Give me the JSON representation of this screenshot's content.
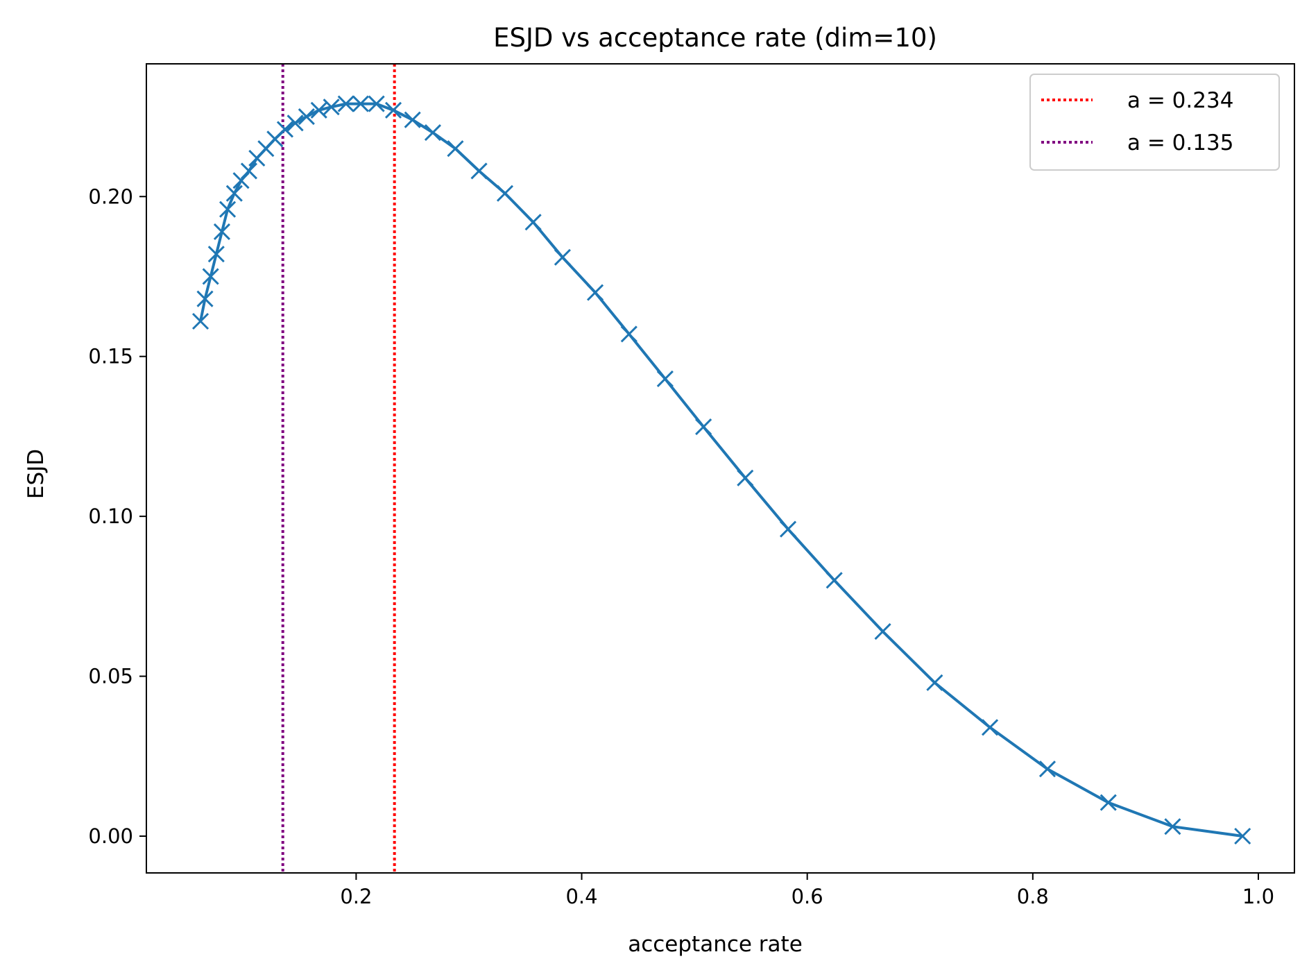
{
  "chart_data": {
    "type": "line",
    "title": "ESJD vs acceptance rate (dim=10)",
    "xlabel": "acceptance rate",
    "ylabel": "ESJD",
    "xlim": [
      0.014,
      1.032
    ],
    "ylim": [
      -0.0115,
      0.2415
    ],
    "xticks": [
      0.2,
      0.4,
      0.6,
      0.8,
      1.0
    ],
    "xtick_labels": [
      "0.2",
      "0.4",
      "0.6",
      "0.8",
      "1.0"
    ],
    "yticks": [
      0.0,
      0.05,
      0.1,
      0.15,
      0.2
    ],
    "ytick_labels": [
      "0.00",
      "0.05",
      "0.10",
      "0.15",
      "0.20"
    ],
    "grid": false,
    "legend_position": "top-right",
    "series": [
      {
        "name": "ESJD",
        "color": "#1f77b4",
        "marker": "x",
        "x": [
          0.986,
          0.924,
          0.867,
          0.813,
          0.762,
          0.713,
          0.667,
          0.624,
          0.583,
          0.545,
          0.508,
          0.474,
          0.442,
          0.412,
          0.383,
          0.357,
          0.332,
          0.309,
          0.288,
          0.268,
          0.25,
          0.233,
          0.218,
          0.204,
          0.191,
          0.178,
          0.167,
          0.156,
          0.146,
          0.137,
          0.128,
          0.12,
          0.112,
          0.105,
          0.098,
          0.092,
          0.086,
          0.081,
          0.076,
          0.071,
          0.066,
          0.062
        ],
        "y": [
          0.0,
          0.003,
          0.0105,
          0.021,
          0.034,
          0.048,
          0.064,
          0.08,
          0.096,
          0.112,
          0.128,
          0.143,
          0.157,
          0.17,
          0.181,
          0.192,
          0.201,
          0.208,
          0.215,
          0.22,
          0.224,
          0.227,
          0.229,
          0.229,
          0.229,
          0.228,
          0.227,
          0.225,
          0.223,
          0.221,
          0.218,
          0.215,
          0.212,
          0.208,
          0.205,
          0.201,
          0.196,
          0.189,
          0.182,
          0.175,
          0.168,
          0.161
        ]
      }
    ],
    "vlines": [
      {
        "label": "a = 0.234",
        "x": 0.234,
        "color": "#ff0000",
        "style": "dotted"
      },
      {
        "label": "a = 0.135",
        "x": 0.135,
        "color": "#800080",
        "style": "dotted"
      }
    ]
  }
}
